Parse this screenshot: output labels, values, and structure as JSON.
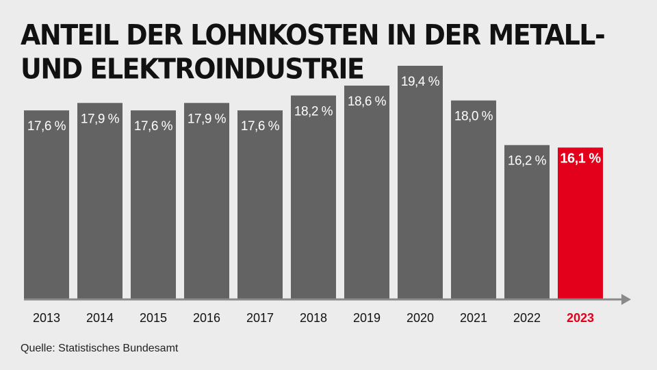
{
  "title": "ANTEIL DER LOHNKOSTEN IN DER METALL- UND ELEKTROINDUSTRIE",
  "source": "Quelle: Statistisches Bundesamt",
  "colors": {
    "bar": "#636363",
    "highlight": "#e2001a",
    "axis": "#8a8a8a",
    "background": "#ececec"
  },
  "chart_data": {
    "type": "bar",
    "title": "ANTEIL DER LOHNKOSTEN IN DER METALL- UND ELEKTROINDUSTRIE",
    "xlabel": "",
    "ylabel": "",
    "categories": [
      "2013",
      "2014",
      "2015",
      "2016",
      "2017",
      "2018",
      "2019",
      "2020",
      "2021",
      "2022",
      "2023"
    ],
    "values": [
      17.6,
      17.9,
      17.6,
      17.9,
      17.6,
      18.2,
      18.6,
      19.4,
      18.0,
      16.2,
      16.1
    ],
    "labels": [
      "17,6 %",
      "17,9 %",
      "17,6 %",
      "17,9 %",
      "17,6 %",
      "18,2 %",
      "18,6 %",
      "19,4 %",
      "18,0 %",
      "16,2 %",
      "16,1 %"
    ],
    "highlight_index": 10,
    "ylim": [
      10.0,
      19.4
    ],
    "grid": false,
    "legend": "none"
  }
}
